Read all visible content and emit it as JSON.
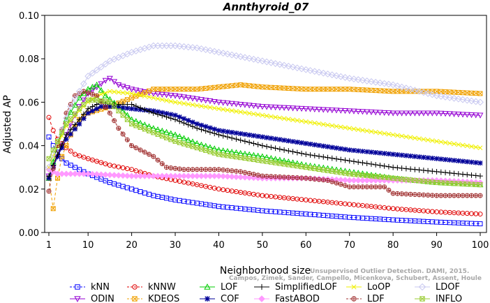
{
  "chart_data": {
    "type": "line",
    "title": "Annthyroid_07",
    "xlabel": "Neighborhood size",
    "ylabel": "Adjusted AP",
    "xlim": [
      0,
      101
    ],
    "ylim": [
      0,
      0.1
    ],
    "x_ticks": [
      1,
      10,
      20,
      30,
      40,
      50,
      60,
      70,
      80,
      90,
      100
    ],
    "y_ticks": [
      "0.00",
      "0.02",
      "0.04",
      "0.06",
      "0.08",
      "0.10"
    ],
    "grid": false,
    "legend_position": "bottom",
    "credit": "Campos, Zimek, Sander, Campello, Micenkova, Schubert, Assent, Houle",
    "credit_line1": "Unsupervised Outlier Detection. DAMI, 2015.",
    "series": [
      {
        "name": "kNN",
        "color": "#0000ff",
        "marker": "square",
        "dashed": true,
        "points": [
          [
            1,
            0.044
          ],
          [
            2,
            0.04
          ],
          [
            3,
            0.037
          ],
          [
            4,
            0.034
          ],
          [
            5,
            0.032
          ],
          [
            7,
            0.03
          ],
          [
            10,
            0.027
          ],
          [
            15,
            0.023
          ],
          [
            20,
            0.02
          ],
          [
            25,
            0.017
          ],
          [
            30,
            0.015
          ],
          [
            40,
            0.012
          ],
          [
            50,
            0.01
          ],
          [
            60,
            0.0085
          ],
          [
            70,
            0.007
          ],
          [
            80,
            0.0058
          ],
          [
            90,
            0.0048
          ],
          [
            100,
            0.004
          ]
        ]
      },
      {
        "name": "ODIN",
        "color": "#9400d3",
        "marker": "triangle-down",
        "dashed": false,
        "points": [
          [
            1,
            0.026
          ],
          [
            2,
            0.03
          ],
          [
            4,
            0.04
          ],
          [
            6,
            0.05
          ],
          [
            8,
            0.058
          ],
          [
            10,
            0.064
          ],
          [
            12,
            0.067
          ],
          [
            14,
            0.07
          ],
          [
            15,
            0.071
          ],
          [
            17,
            0.068
          ],
          [
            20,
            0.066
          ],
          [
            25,
            0.064
          ],
          [
            30,
            0.063
          ],
          [
            40,
            0.06
          ],
          [
            50,
            0.058
          ],
          [
            60,
            0.057
          ],
          [
            70,
            0.056
          ],
          [
            80,
            0.055
          ],
          [
            90,
            0.055
          ],
          [
            100,
            0.054
          ]
        ]
      },
      {
        "name": "kNNW",
        "color": "#e00000",
        "marker": "circle",
        "dashed": true,
        "points": [
          [
            1,
            0.053
          ],
          [
            2,
            0.047
          ],
          [
            3,
            0.043
          ],
          [
            4,
            0.041
          ],
          [
            5,
            0.039
          ],
          [
            7,
            0.036
          ],
          [
            10,
            0.034
          ],
          [
            15,
            0.031
          ],
          [
            20,
            0.029
          ],
          [
            25,
            0.026
          ],
          [
            30,
            0.024
          ],
          [
            40,
            0.02
          ],
          [
            50,
            0.017
          ],
          [
            60,
            0.015
          ],
          [
            70,
            0.013
          ],
          [
            80,
            0.011
          ],
          [
            90,
            0.0095
          ],
          [
            100,
            0.0085
          ]
        ]
      },
      {
        "name": "KDEOS",
        "color": "#f0a000",
        "marker": "square-x",
        "dashed": true,
        "points": [
          [
            1,
            0.025
          ],
          [
            2,
            0.011
          ],
          [
            3,
            0.025
          ],
          [
            4,
            0.035
          ],
          [
            6,
            0.045
          ],
          [
            8,
            0.052
          ],
          [
            10,
            0.055
          ],
          [
            15,
            0.058
          ],
          [
            20,
            0.062
          ],
          [
            25,
            0.066
          ],
          [
            30,
            0.066
          ],
          [
            35,
            0.066
          ],
          [
            40,
            0.067
          ],
          [
            45,
            0.068
          ],
          [
            50,
            0.067
          ],
          [
            60,
            0.066
          ],
          [
            70,
            0.066
          ],
          [
            80,
            0.065
          ],
          [
            90,
            0.065
          ],
          [
            100,
            0.064
          ]
        ]
      },
      {
        "name": "LOF",
        "color": "#00cc00",
        "marker": "triangle-up",
        "dashed": false,
        "points": [
          [
            1,
            0.025
          ],
          [
            3,
            0.04
          ],
          [
            5,
            0.052
          ],
          [
            8,
            0.062
          ],
          [
            10,
            0.066
          ],
          [
            12,
            0.068
          ],
          [
            14,
            0.063
          ],
          [
            17,
            0.058
          ],
          [
            20,
            0.052
          ],
          [
            25,
            0.048
          ],
          [
            30,
            0.045
          ],
          [
            35,
            0.041
          ],
          [
            40,
            0.038
          ],
          [
            50,
            0.035
          ],
          [
            60,
            0.031
          ],
          [
            70,
            0.028
          ],
          [
            80,
            0.025
          ],
          [
            90,
            0.023
          ],
          [
            100,
            0.022
          ]
        ]
      },
      {
        "name": "COF",
        "color": "#000099",
        "marker": "asterisk",
        "dashed": false,
        "points": [
          [
            1,
            0.025
          ],
          [
            3,
            0.035
          ],
          [
            5,
            0.043
          ],
          [
            8,
            0.05
          ],
          [
            10,
            0.055
          ],
          [
            13,
            0.058
          ],
          [
            16,
            0.058
          ],
          [
            20,
            0.057
          ],
          [
            25,
            0.056
          ],
          [
            30,
            0.054
          ],
          [
            35,
            0.05
          ],
          [
            40,
            0.047
          ],
          [
            50,
            0.044
          ],
          [
            60,
            0.041
          ],
          [
            70,
            0.038
          ],
          [
            80,
            0.036
          ],
          [
            90,
            0.034
          ],
          [
            100,
            0.032
          ]
        ]
      },
      {
        "name": "SimplifiedLOF",
        "color": "#000000",
        "marker": "plus",
        "dashed": false,
        "points": [
          [
            1,
            0.026
          ],
          [
            3,
            0.036
          ],
          [
            5,
            0.045
          ],
          [
            8,
            0.052
          ],
          [
            10,
            0.057
          ],
          [
            13,
            0.06
          ],
          [
            15,
            0.059
          ],
          [
            20,
            0.059
          ],
          [
            25,
            0.055
          ],
          [
            30,
            0.052
          ],
          [
            35,
            0.048
          ],
          [
            40,
            0.045
          ],
          [
            50,
            0.04
          ],
          [
            60,
            0.036
          ],
          [
            70,
            0.033
          ],
          [
            80,
            0.03
          ],
          [
            90,
            0.028
          ],
          [
            100,
            0.026
          ]
        ]
      },
      {
        "name": "FastABOD",
        "color": "#ff99ff",
        "marker": "diamond",
        "dashed": false,
        "points": [
          [
            1,
            0.029
          ],
          [
            3,
            0.027
          ],
          [
            6,
            0.027
          ],
          [
            10,
            0.027
          ],
          [
            20,
            0.026
          ],
          [
            30,
            0.026
          ],
          [
            40,
            0.026
          ],
          [
            50,
            0.025
          ],
          [
            60,
            0.025
          ],
          [
            70,
            0.024
          ],
          [
            80,
            0.024
          ],
          [
            90,
            0.024
          ],
          [
            100,
            0.023
          ]
        ]
      },
      {
        "name": "LoOP",
        "color": "#f0f000",
        "marker": "x",
        "dashed": false,
        "points": [
          [
            1,
            0.03
          ],
          [
            3,
            0.04
          ],
          [
            5,
            0.049
          ],
          [
            8,
            0.056
          ],
          [
            10,
            0.06
          ],
          [
            12,
            0.063
          ],
          [
            15,
            0.065
          ],
          [
            20,
            0.064
          ],
          [
            25,
            0.062
          ],
          [
            30,
            0.06
          ],
          [
            40,
            0.057
          ],
          [
            50,
            0.054
          ],
          [
            60,
            0.051
          ],
          [
            70,
            0.048
          ],
          [
            80,
            0.045
          ],
          [
            90,
            0.042
          ],
          [
            100,
            0.039
          ]
        ]
      },
      {
        "name": "LDF",
        "color": "#a03030",
        "marker": "circle-plus",
        "dashed": true,
        "points": [
          [
            1,
            0.019
          ],
          [
            3,
            0.04
          ],
          [
            5,
            0.055
          ],
          [
            7,
            0.063
          ],
          [
            9,
            0.065
          ],
          [
            12,
            0.063
          ],
          [
            15,
            0.055
          ],
          [
            17,
            0.048
          ],
          [
            20,
            0.04
          ],
          [
            25,
            0.035
          ],
          [
            28,
            0.03
          ],
          [
            32,
            0.029
          ],
          [
            40,
            0.029
          ],
          [
            45,
            0.028
          ],
          [
            50,
            0.026
          ],
          [
            60,
            0.025
          ],
          [
            65,
            0.024
          ],
          [
            70,
            0.021
          ],
          [
            78,
            0.021
          ],
          [
            80,
            0.018
          ],
          [
            90,
            0.017
          ],
          [
            100,
            0.017
          ]
        ]
      },
      {
        "name": "LDOF",
        "color": "#c8c8f0",
        "marker": "diamond-open",
        "dashed": false,
        "points": [
          [
            1,
            0.03
          ],
          [
            3,
            0.042
          ],
          [
            6,
            0.058
          ],
          [
            10,
            0.072
          ],
          [
            15,
            0.079
          ],
          [
            20,
            0.083
          ],
          [
            25,
            0.086
          ],
          [
            30,
            0.086
          ],
          [
            35,
            0.085
          ],
          [
            40,
            0.083
          ],
          [
            50,
            0.079
          ],
          [
            60,
            0.075
          ],
          [
            70,
            0.071
          ],
          [
            80,
            0.068
          ],
          [
            90,
            0.063
          ],
          [
            100,
            0.06
          ]
        ]
      },
      {
        "name": "INFLO",
        "color": "#99cc33",
        "marker": "square-cross",
        "dashed": false,
        "points": [
          [
            1,
            0.034
          ],
          [
            3,
            0.042
          ],
          [
            5,
            0.05
          ],
          [
            8,
            0.057
          ],
          [
            10,
            0.061
          ],
          [
            12,
            0.061
          ],
          [
            15,
            0.06
          ],
          [
            18,
            0.054
          ],
          [
            20,
            0.05
          ],
          [
            25,
            0.046
          ],
          [
            30,
            0.042
          ],
          [
            35,
            0.039
          ],
          [
            40,
            0.036
          ],
          [
            50,
            0.033
          ],
          [
            60,
            0.03
          ],
          [
            70,
            0.027
          ],
          [
            80,
            0.025
          ],
          [
            90,
            0.023
          ],
          [
            100,
            0.022
          ]
        ]
      }
    ]
  }
}
